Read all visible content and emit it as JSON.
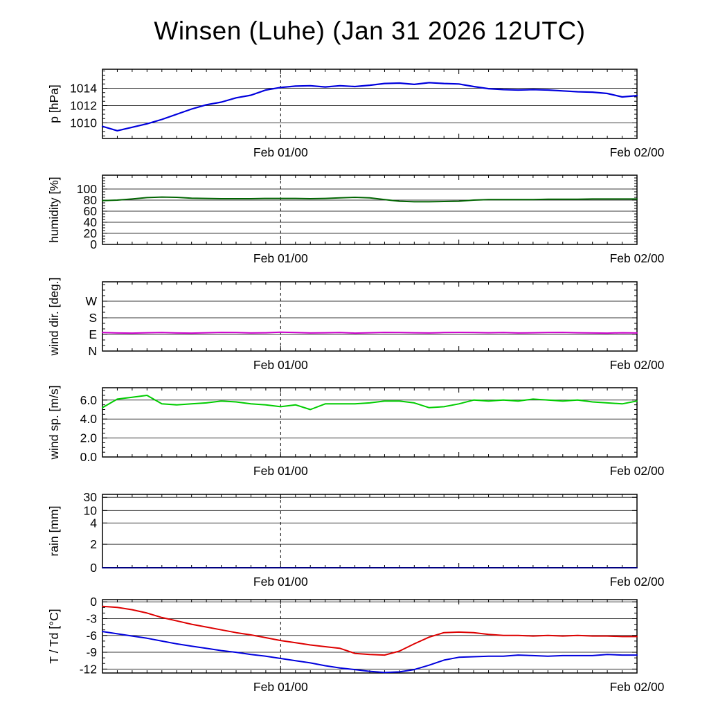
{
  "title": "Winsen (Luhe) (Jan 31 2026 12UTC)",
  "x_axis": {
    "min": 0,
    "max": 36,
    "start_time": "Jan 31 12UTC",
    "major_ticks": [
      {
        "h": 12,
        "label": "Feb 01/00"
      },
      {
        "h": 24,
        "label": ""
      },
      {
        "h": 36,
        "label": "Feb 02/00"
      }
    ],
    "minor_step": 1,
    "vline": 12
  },
  "chart_data": [
    {
      "id": "pressure",
      "type": "line",
      "ylabel": "p [hPa]",
      "ylim": [
        1008.2,
        1016.2
      ],
      "grid": true,
      "yticks": [
        {
          "v": 1010,
          "label": "1010"
        },
        {
          "v": 1012,
          "label": "1012"
        },
        {
          "v": 1014,
          "label": "1014"
        }
      ],
      "y_minor_step": 0.5,
      "series": [
        {
          "name": "pressure",
          "color": "#0000dd",
          "width": 2.2,
          "values": [
            1009.6,
            1009.1,
            1009.5,
            1009.9,
            1010.4,
            1011.0,
            1011.6,
            1012.1,
            1012.4,
            1012.9,
            1013.2,
            1013.8,
            1014.1,
            1014.25,
            1014.3,
            1014.15,
            1014.3,
            1014.2,
            1014.35,
            1014.55,
            1014.6,
            1014.45,
            1014.65,
            1014.55,
            1014.5,
            1014.2,
            1013.95,
            1013.85,
            1013.8,
            1013.85,
            1013.8,
            1013.7,
            1013.6,
            1013.55,
            1013.4,
            1013.0,
            1013.15
          ]
        }
      ]
    },
    {
      "id": "humidity",
      "type": "line",
      "ylabel": "humidity [%]",
      "ylim": [
        0,
        125
      ],
      "grid": true,
      "yticks": [
        {
          "v": 0,
          "label": "0"
        },
        {
          "v": 20,
          "label": "20"
        },
        {
          "v": 40,
          "label": "40"
        },
        {
          "v": 60,
          "label": "60"
        },
        {
          "v": 80,
          "label": "80"
        },
        {
          "v": 100,
          "label": "100"
        }
      ],
      "y_minor_step": 5,
      "series": [
        {
          "name": "humidity",
          "color": "#006400",
          "width": 2,
          "values": [
            79,
            80,
            82,
            84.5,
            85.5,
            85,
            83.5,
            83,
            82.5,
            82.5,
            82.5,
            83,
            83,
            83,
            82.5,
            83,
            84,
            85,
            84,
            81,
            78,
            77,
            77,
            77.5,
            78,
            80,
            81,
            81,
            81,
            81,
            81.5,
            81.5,
            81.5,
            82,
            82,
            82,
            82
          ]
        }
      ]
    },
    {
      "id": "wind-direction",
      "type": "line",
      "ylabel": "wind dir. [deg.]",
      "ylim": [
        0,
        375
      ],
      "grid": true,
      "yticks": [
        {
          "v": 0,
          "label": "N"
        },
        {
          "v": 90,
          "label": "E"
        },
        {
          "v": 180,
          "label": "S"
        },
        {
          "v": 270,
          "label": "W"
        }
      ],
      "y_minor_step": 30,
      "series": [
        {
          "name": "wind-direction",
          "color": "#cc00cc",
          "width": 2,
          "values": [
            100,
            98,
            97,
            99,
            100,
            98,
            97,
            99,
            101,
            100,
            98,
            99,
            102,
            100,
            98,
            99,
            100,
            97,
            99,
            101,
            100,
            99,
            98,
            100,
            101,
            100,
            99,
            100,
            98,
            99,
            100,
            101,
            99,
            98,
            97,
            99,
            98
          ]
        }
      ]
    },
    {
      "id": "wind-speed",
      "type": "line",
      "ylabel": "wind sp. [m/s]",
      "ylim": [
        0,
        7.3
      ],
      "grid": true,
      "yticks": [
        {
          "v": 0,
          "label": "0.0"
        },
        {
          "v": 2,
          "label": "2.0"
        },
        {
          "v": 4,
          "label": "4.0"
        },
        {
          "v": 6,
          "label": "6.0"
        }
      ],
      "y_minor_step": 0.5,
      "series": [
        {
          "name": "wind-speed",
          "color": "#00cc00",
          "width": 2,
          "values": [
            5.2,
            6.1,
            6.3,
            6.5,
            5.6,
            5.5,
            5.6,
            5.7,
            5.9,
            5.8,
            5.6,
            5.5,
            5.3,
            5.5,
            5.0,
            5.6,
            5.6,
            5.6,
            5.7,
            5.9,
            5.9,
            5.7,
            5.2,
            5.3,
            5.6,
            6.0,
            5.9,
            6.0,
            5.9,
            6.1,
            6.0,
            5.9,
            6.0,
            5.8,
            5.7,
            5.6,
            5.9
          ]
        }
      ]
    },
    {
      "id": "rain",
      "type": "line",
      "ylabel": "rain [mm]",
      "scale": "segmented",
      "anchors": [
        [
          0,
          0
        ],
        [
          2,
          0.32
        ],
        [
          4,
          0.61
        ],
        [
          10,
          0.78
        ],
        [
          30,
          0.96
        ]
      ],
      "grid": true,
      "yticks": [
        {
          "v": 0,
          "label": "0"
        },
        {
          "v": 2,
          "label": "2"
        },
        {
          "v": 4,
          "label": "4"
        },
        {
          "v": 10,
          "label": "10"
        },
        {
          "v": 30,
          "label": "30"
        }
      ],
      "y_minor_step": null,
      "series": [
        {
          "name": "rain",
          "color": "#000080",
          "width": 2,
          "values": [
            0,
            0,
            0,
            0,
            0,
            0,
            0,
            0,
            0,
            0,
            0,
            0,
            0,
            0,
            0,
            0,
            0,
            0,
            0,
            0,
            0,
            0,
            0,
            0,
            0,
            0,
            0,
            0,
            0,
            0,
            0,
            0,
            0,
            0,
            0,
            0,
            0
          ]
        }
      ]
    },
    {
      "id": "temperature",
      "type": "line",
      "ylabel": "T / Td [°C]",
      "ylim": [
        -12.7,
        0.4
      ],
      "grid": true,
      "yticks": [
        {
          "v": 0,
          "label": "0"
        },
        {
          "v": -3,
          "label": "-3"
        },
        {
          "v": -6,
          "label": "-6"
        },
        {
          "v": -9,
          "label": "-9"
        },
        {
          "v": -12,
          "label": "-12"
        }
      ],
      "y_minor_step": 1,
      "series": [
        {
          "name": "temperature",
          "color": "#dd0000",
          "width": 2,
          "values": [
            -0.8,
            -1.0,
            -1.4,
            -2.0,
            -2.8,
            -3.4,
            -4.0,
            -4.5,
            -5.0,
            -5.5,
            -5.9,
            -6.4,
            -6.9,
            -7.3,
            -7.7,
            -8.0,
            -8.3,
            -9.2,
            -9.4,
            -9.5,
            -8.8,
            -7.5,
            -6.3,
            -5.5,
            -5.4,
            -5.5,
            -5.8,
            -6.0,
            -6.0,
            -6.1,
            -6.0,
            -6.1,
            -6.0,
            -6.1,
            -6.1,
            -6.2,
            -6.2
          ]
        },
        {
          "name": "dewpoint",
          "color": "#0000dd",
          "width": 2,
          "values": [
            -5.3,
            -5.7,
            -6.1,
            -6.5,
            -7.0,
            -7.5,
            -7.9,
            -8.3,
            -8.7,
            -9.0,
            -9.4,
            -9.7,
            -10.1,
            -10.5,
            -10.9,
            -11.4,
            -11.8,
            -12.1,
            -12.4,
            -12.6,
            -12.5,
            -12.1,
            -11.3,
            -10.4,
            -9.9,
            -9.8,
            -9.7,
            -9.7,
            -9.5,
            -9.6,
            -9.7,
            -9.6,
            -9.6,
            -9.6,
            -9.4,
            -9.5,
            -9.5
          ]
        }
      ]
    }
  ]
}
